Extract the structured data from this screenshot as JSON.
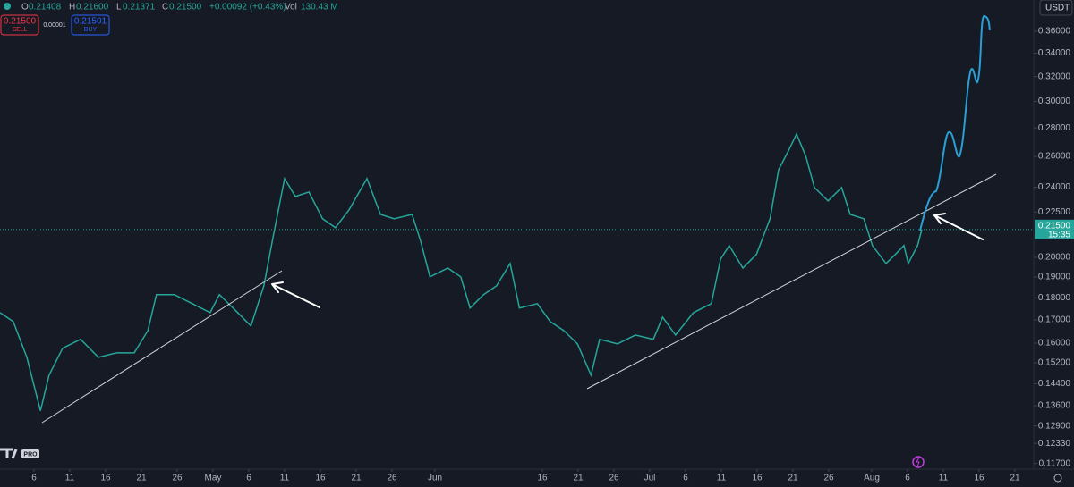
{
  "chart_data": {
    "type": "line",
    "color": "#26a69a",
    "log_scale": true,
    "grid": false,
    "x": [
      0.25,
      2.1,
      4.0,
      5.9,
      7.1,
      9.0,
      11.5,
      14.0,
      16.5,
      19.0,
      20.9,
      22.1,
      24.6,
      27.1,
      29.6,
      30.9,
      32.8,
      35.3,
      37.1,
      38.4,
      40.0,
      41.5,
      43.4,
      45.3,
      47.1,
      49.0,
      51.5,
      53.4,
      55.3,
      57.8,
      59.0,
      60.3,
      62.8,
      64.6,
      65.9,
      67.8,
      69.6,
      71.5,
      72.8,
      75.3,
      77.1,
      79.0,
      80.9,
      82.8,
      84.0,
      86.5,
      89.0,
      91.5,
      92.8,
      94.6,
      97.1,
      99.6,
      100.9,
      102.1,
      104.0,
      105.9,
      107.8,
      109.0,
      110.3,
      111.5,
      112.8,
      114.0,
      115.9,
      117.8,
      119.0,
      120.9,
      122.1,
      124.0,
      125.3,
      126.5,
      127.1,
      128.4,
      129.0
    ],
    "values": [
      0.1732,
      0.1692,
      0.1542,
      0.1342,
      0.1472,
      0.1579,
      0.1616,
      0.1542,
      0.156,
      0.156,
      0.1653,
      0.1815,
      0.1815,
      0.1773,
      0.1732,
      0.1815,
      0.1753,
      0.1673,
      0.1857,
      0.211,
      0.2454,
      0.2343,
      0.237,
      0.2211,
      0.216,
      0.2263,
      0.2454,
      0.2236,
      0.2211,
      0.2236,
      0.2086,
      0.1901,
      0.1945,
      0.1901,
      0.1753,
      0.1815,
      0.1857,
      0.1968,
      0.1753,
      0.1773,
      0.1692,
      0.1653,
      0.1597,
      0.1472,
      0.1616,
      0.1597,
      0.1634,
      0.1616,
      0.1712,
      0.1634,
      0.1732,
      0.1773,
      0.1991,
      0.2062,
      0.1945,
      0.2015,
      0.2211,
      0.2512,
      0.2631,
      0.2756,
      0.2601,
      0.2398,
      0.2316,
      0.2398,
      0.2236,
      0.2211,
      0.2062,
      0.1968,
      0.2015,
      0.2062,
      0.1968,
      0.2062,
      0.215
    ],
    "xlim": [
      0,
      144
    ],
    "xticks": [
      {
        "value": 5,
        "label": "6"
      },
      {
        "value": 10,
        "label": "11"
      },
      {
        "value": 15,
        "label": "16"
      },
      {
        "value": 20,
        "label": "21"
      },
      {
        "value": 25,
        "label": "26"
      },
      {
        "value": 30,
        "label": "May"
      },
      {
        "value": 35,
        "label": "6"
      },
      {
        "value": 40,
        "label": "11"
      },
      {
        "value": 45,
        "label": "16"
      },
      {
        "value": 50,
        "label": "21"
      },
      {
        "value": 55,
        "label": "26"
      },
      {
        "value": 61,
        "label": "Jun"
      },
      {
        "value": 76,
        "label": "16"
      },
      {
        "value": 81,
        "label": "21"
      },
      {
        "value": 86,
        "label": "26"
      },
      {
        "value": 91,
        "label": "Jul"
      },
      {
        "value": 96,
        "label": "6"
      },
      {
        "value": 101,
        "label": "11"
      },
      {
        "value": 106,
        "label": "16"
      },
      {
        "value": 111,
        "label": "21"
      },
      {
        "value": 116,
        "label": "26"
      },
      {
        "value": 122,
        "label": "Aug"
      },
      {
        "value": 127,
        "label": "6"
      },
      {
        "value": 132,
        "label": "11"
      },
      {
        "value": 137,
        "label": "16"
      },
      {
        "value": 142,
        "label": "21"
      }
    ],
    "ylim": [
      0.1153,
      0.3905
    ],
    "yticks": [
      {
        "value": 0.36,
        "label": "0.36000"
      },
      {
        "value": 0.34,
        "label": "0.34000"
      },
      {
        "value": 0.32,
        "label": "0.32000"
      },
      {
        "value": 0.3,
        "label": "0.30000"
      },
      {
        "value": 0.28,
        "label": "0.28000"
      },
      {
        "value": 0.26,
        "label": "0.26000"
      },
      {
        "value": 0.24,
        "label": "0.24000"
      },
      {
        "value": 0.225,
        "label": "0.22500"
      },
      {
        "value": 0.2,
        "label": "0.20000"
      },
      {
        "value": 0.19,
        "label": "0.19000"
      },
      {
        "value": 0.18,
        "label": "0.18000"
      },
      {
        "value": 0.17,
        "label": "0.17000"
      },
      {
        "value": 0.16,
        "label": "0.16000"
      },
      {
        "value": 0.152,
        "label": "0.15200"
      },
      {
        "value": 0.144,
        "label": "0.14400"
      },
      {
        "value": 0.136,
        "label": "0.13600"
      },
      {
        "value": 0.129,
        "label": "0.12900"
      },
      {
        "value": 0.1233,
        "label": "0.12330"
      },
      {
        "value": 0.117,
        "label": "0.11700"
      }
    ],
    "last_price": {
      "value": 0.215,
      "label": "0.21500"
    },
    "countdown": "15:35"
  },
  "header": {
    "open_label": "O",
    "open": "0.21408",
    "high_label": "H",
    "high": "0.21600",
    "low_label": "L",
    "low": "0.21371",
    "close_label": "C",
    "close": "0.21500",
    "change": "+0.00092 (+0.43%)",
    "vol_label": "Vol",
    "vol": "130.43 M",
    "currency": "USDT"
  },
  "trade": {
    "sell_price": "0.21500",
    "sell": "SELL",
    "spread": "0.00001",
    "buy_price": "0.21501",
    "buy": "BUY"
  },
  "logo": "PRO"
}
